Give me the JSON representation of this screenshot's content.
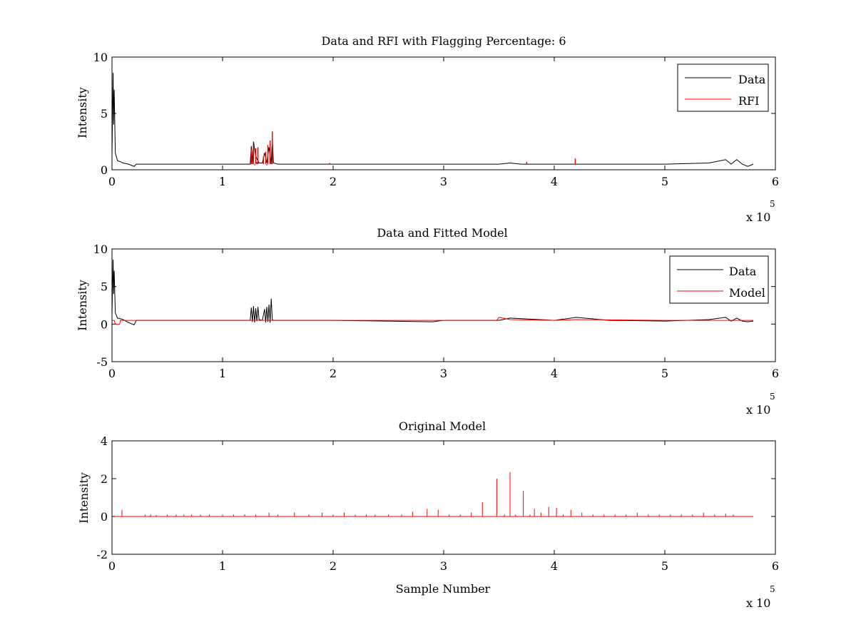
{
  "chart_data": [
    {
      "type": "line",
      "title": "Data and RFI with Flagging Percentage: 6",
      "xlabel": "",
      "ylabel": "Intensity",
      "xlim": [
        0,
        6
      ],
      "ylim": [
        0,
        10
      ],
      "x_multiplier_label": "x 10",
      "x_multiplier_exponent": "5",
      "xticks": [
        "0",
        "1",
        "2",
        "3",
        "4",
        "5",
        "6"
      ],
      "yticks": [
        "0",
        "5",
        "10"
      ],
      "legend": {
        "position": "top-right",
        "entries": [
          "Data",
          "RFI"
        ]
      },
      "series": [
        {
          "name": "Data",
          "color": "#000000",
          "x": [
            0,
            0.01,
            0.015,
            0.02,
            0.03,
            0.05,
            0.08,
            0.1,
            0.15,
            0.2,
            0.22,
            0.3,
            0.6,
            1.0,
            1.2,
            1.25,
            1.26,
            1.27,
            1.28,
            1.3,
            1.33,
            1.36,
            1.38,
            1.4,
            1.42,
            1.44,
            1.45,
            1.46,
            1.5,
            2.0,
            2.5,
            3.0,
            3.5,
            3.6,
            3.7,
            4.0,
            4.2,
            4.5,
            5.0,
            5.4,
            5.55,
            5.6,
            5.65,
            5.7,
            5.75,
            5.8
          ],
          "y": [
            1.2,
            8.6,
            4.0,
            7.1,
            1.5,
            0.8,
            0.7,
            0.6,
            0.5,
            0.3,
            0.5,
            0.5,
            0.5,
            0.5,
            0.5,
            0.5,
            2.1,
            0.6,
            2.5,
            1.2,
            0.6,
            0.6,
            1.5,
            0.6,
            2.0,
            0.6,
            2.8,
            0.6,
            0.5,
            0.5,
            0.5,
            0.5,
            0.5,
            0.6,
            0.5,
            0.5,
            0.5,
            0.5,
            0.5,
            0.6,
            0.9,
            0.5,
            0.9,
            0.5,
            0.3,
            0.5
          ]
        },
        {
          "name": "RFI",
          "color": "#ff0000",
          "x": [
            1.25,
            1.26,
            1.27,
            1.28,
            1.29,
            1.3,
            1.31,
            1.32,
            1.33,
            1.35,
            1.37,
            1.38,
            1.39,
            1.4,
            1.41,
            1.42,
            1.43,
            1.44,
            1.45,
            1.46,
            1.97,
            3.75,
            4.19
          ],
          "y": [
            0.5,
            1.8,
            0.6,
            2.2,
            0.4,
            1.9,
            0.7,
            2.0,
            0.5,
            0.5,
            1.2,
            0.5,
            1.6,
            0.4,
            2.2,
            0.5,
            2.6,
            0.6,
            3.4,
            0.5,
            0.6,
            0.7,
            1.0
          ]
        }
      ]
    },
    {
      "type": "line",
      "title": "Data and Fitted Model",
      "xlabel": "",
      "ylabel": "Intensity",
      "xlim": [
        0,
        6
      ],
      "ylim": [
        -5,
        10
      ],
      "x_multiplier_label": "x 10",
      "x_multiplier_exponent": "5",
      "xticks": [
        "0",
        "1",
        "2",
        "3",
        "4",
        "5",
        "6"
      ],
      "yticks": [
        "-5",
        "0",
        "5",
        "10"
      ],
      "legend": {
        "position": "top-right",
        "entries": [
          "Data",
          "Model"
        ]
      },
      "series": [
        {
          "name": "Data",
          "color": "#000000",
          "x": [
            0,
            0.01,
            0.015,
            0.02,
            0.03,
            0.05,
            0.08,
            0.1,
            0.15,
            0.2,
            0.22,
            0.3,
            0.6,
            1.0,
            1.2,
            1.25,
            1.26,
            1.27,
            1.28,
            1.29,
            1.3,
            1.31,
            1.32,
            1.33,
            1.36,
            1.38,
            1.39,
            1.4,
            1.41,
            1.42,
            1.43,
            1.44,
            1.45,
            1.46,
            1.5,
            2.0,
            2.9,
            3.0,
            3.5,
            3.6,
            4.0,
            4.2,
            4.5,
            5.0,
            5.4,
            5.55,
            5.6,
            5.65,
            5.7,
            5.75,
            5.8
          ],
          "y": [
            1.2,
            8.6,
            4.0,
            7.1,
            1.5,
            0.8,
            0.7,
            0.6,
            0.2,
            -0.1,
            0.5,
            0.5,
            0.5,
            0.5,
            0.5,
            0.5,
            2.2,
            0.3,
            2.4,
            0.2,
            2.1,
            0.4,
            2.3,
            0.6,
            0.5,
            2.0,
            0.2,
            2.3,
            0.3,
            2.6,
            0.2,
            3.4,
            0.6,
            0.5,
            0.5,
            0.5,
            0.3,
            0.5,
            0.5,
            0.8,
            0.5,
            0.9,
            0.5,
            0.4,
            0.6,
            0.9,
            0.4,
            0.8,
            0.4,
            0.3,
            0.4
          ]
        },
        {
          "name": "Model",
          "color": "#ff0000",
          "x": [
            0,
            0.01,
            0.02,
            0.03,
            0.07,
            0.075,
            0.08,
            0.1,
            0.2,
            1.0,
            2.0,
            3.0,
            3.48,
            3.5,
            3.6,
            4.0,
            4.2,
            5.0,
            5.8
          ],
          "y": [
            0.5,
            0.5,
            0.5,
            0.0,
            0.0,
            0.5,
            0.5,
            0.5,
            0.5,
            0.5,
            0.5,
            0.5,
            0.5,
            0.9,
            0.6,
            0.5,
            0.6,
            0.5,
            0.5
          ]
        }
      ]
    },
    {
      "type": "line",
      "title": "Original Model",
      "xlabel": "Sample Number",
      "ylabel": "Intensity",
      "xlim": [
        0,
        6
      ],
      "ylim": [
        -2,
        4
      ],
      "x_multiplier_label": "x 10",
      "x_multiplier_exponent": "5",
      "xticks": [
        "0",
        "1",
        "2",
        "3",
        "4",
        "5",
        "6"
      ],
      "yticks": [
        "-2",
        "0",
        "2",
        "4"
      ],
      "series": [
        {
          "name": "",
          "color": "#ff0000",
          "spikes": [
            [
              0.02,
              0.05
            ],
            [
              0.09,
              0.35
            ],
            [
              0.3,
              0.1
            ],
            [
              0.35,
              0.1
            ],
            [
              0.4,
              0.08
            ],
            [
              0.5,
              0.1
            ],
            [
              0.58,
              0.1
            ],
            [
              0.65,
              0.1
            ],
            [
              0.72,
              0.1
            ],
            [
              0.8,
              0.1
            ],
            [
              0.88,
              0.1
            ],
            [
              1.0,
              0.1
            ],
            [
              1.1,
              0.1
            ],
            [
              1.2,
              0.12
            ],
            [
              1.3,
              0.1
            ],
            [
              1.42,
              0.2
            ],
            [
              1.5,
              0.1
            ],
            [
              1.65,
              0.2
            ],
            [
              1.78,
              0.1
            ],
            [
              1.9,
              0.2
            ],
            [
              2.0,
              0.1
            ],
            [
              2.1,
              0.2
            ],
            [
              2.2,
              0.1
            ],
            [
              2.3,
              0.1
            ],
            [
              2.38,
              0.1
            ],
            [
              2.5,
              0.1
            ],
            [
              2.62,
              0.1
            ],
            [
              2.72,
              0.25
            ],
            [
              2.85,
              0.4
            ],
            [
              2.95,
              0.35
            ],
            [
              3.05,
              0.1
            ],
            [
              3.15,
              0.1
            ],
            [
              3.25,
              0.2
            ],
            [
              3.35,
              0.75
            ],
            [
              3.48,
              2.0
            ],
            [
              3.55,
              0.1
            ],
            [
              3.6,
              2.35
            ],
            [
              3.65,
              0.1
            ],
            [
              3.72,
              1.35
            ],
            [
              3.78,
              0.1
            ],
            [
              3.82,
              0.4
            ],
            [
              3.88,
              0.2
            ],
            [
              3.95,
              0.5
            ],
            [
              4.02,
              0.45
            ],
            [
              4.08,
              0.1
            ],
            [
              4.15,
              0.35
            ],
            [
              4.25,
              0.2
            ],
            [
              4.35,
              0.1
            ],
            [
              4.45,
              0.1
            ],
            [
              4.55,
              0.1
            ],
            [
              4.65,
              0.1
            ],
            [
              4.75,
              0.2
            ],
            [
              4.85,
              0.1
            ],
            [
              4.95,
              0.1
            ],
            [
              5.05,
              0.1
            ],
            [
              5.15,
              0.1
            ],
            [
              5.25,
              0.1
            ],
            [
              5.35,
              0.2
            ],
            [
              5.45,
              0.1
            ],
            [
              5.55,
              0.15
            ],
            [
              5.62,
              0.1
            ]
          ],
          "baseline": 0,
          "x_end": 5.8
        }
      ]
    }
  ]
}
